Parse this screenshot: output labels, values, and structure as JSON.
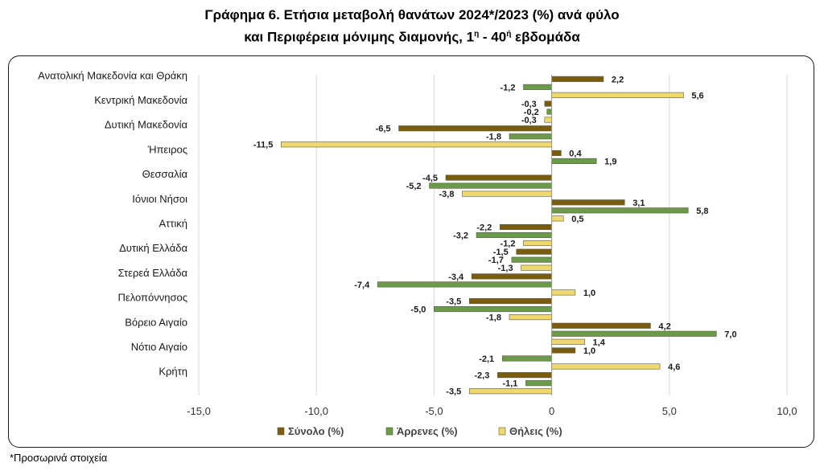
{
  "title_line1": "Γράφημα 6. Ετήσια μεταβολή θανάτων 2024*/2023 (%) ανά φύλο",
  "title_line2_main": "και Περιφέρεια μόνιμης διαμονής, 1",
  "title_line2_sup1": "η",
  "title_line2_mid": " - 40",
  "title_line2_sup2": "ή",
  "title_line2_end": " εβδομάδα",
  "footnote": "*Προσωρινά στοιχεία",
  "chart_data": {
    "type": "bar",
    "orientation": "horizontal",
    "categories": [
      "Ανατολική Μακεδονία και Θράκη",
      "Κεντρική Μακεδονία",
      "Δυτική Μακεδονία",
      "Ήπειρος",
      "Θεσσαλία",
      "Ιόνιοι Νήσοι",
      "Αττική",
      "Δυτική Ελλάδα",
      "Στερεά Ελλάδα",
      "Πελοπόννησος",
      "Βόρειο Αιγαίο",
      "Νότιο Αιγαίο",
      "Κρήτη"
    ],
    "series": [
      {
        "name": "Σύνολο (%)",
        "color": "#7a5c10",
        "values": [
          2.2,
          -0.3,
          -6.5,
          0.4,
          -4.5,
          3.1,
          -2.2,
          -1.5,
          -3.4,
          -3.5,
          4.2,
          1.0,
          -2.3
        ],
        "labels": [
          "2,2",
          "-0,3",
          "-6,5",
          "0,4",
          "-4,5",
          "3,1",
          "-2,2",
          "-1,5",
          "-3,4",
          "-3,5",
          "4,2",
          "1,0",
          "-2,3"
        ]
      },
      {
        "name": "Άρρενες (%)",
        "color": "#6a9a4a",
        "values": [
          -1.2,
          -0.2,
          -1.8,
          1.9,
          -5.2,
          5.8,
          -3.2,
          -1.7,
          -7.4,
          -5.0,
          7.0,
          -2.1,
          -1.1
        ],
        "labels": [
          "-1,2",
          "-0,2",
          "-1,8",
          "1,9",
          "-5,2",
          "5,8",
          "-3,2",
          "-1,7",
          "-7,4",
          "-5,0",
          "7,0",
          "-2,1",
          "-1,1"
        ]
      },
      {
        "name": "Θήλεις (%)",
        "color": "#f0d870",
        "values": [
          5.6,
          -0.3,
          -11.5,
          null,
          -3.8,
          0.5,
          -1.2,
          -1.3,
          1.0,
          -1.8,
          1.4,
          4.6,
          -3.5
        ],
        "labels": [
          "5,6",
          "-0,3",
          "-11,5",
          "",
          "-3,8",
          "0,5",
          "-1,2",
          "-1,3",
          "1,0",
          "-1,8",
          "1,4",
          "4,6",
          "-3,5"
        ]
      }
    ],
    "xlim": [
      -15,
      10
    ],
    "xticks": [
      -15,
      -10,
      -5,
      0,
      5,
      10
    ],
    "xtick_labels": [
      "-15,0",
      "-10,0",
      "-5,0",
      "0",
      "5,0",
      "10,0"
    ],
    "grid": true,
    "legend_position": "bottom"
  }
}
